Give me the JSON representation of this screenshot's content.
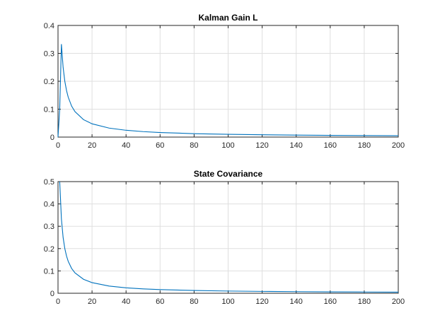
{
  "chart_data": [
    {
      "type": "line",
      "title": "Kalman Gain L",
      "xlabel": "",
      "ylabel": "",
      "xlim": [
        0,
        200
      ],
      "ylim": [
        0,
        0.4
      ],
      "xticks": [
        0,
        20,
        40,
        60,
        80,
        100,
        120,
        140,
        160,
        180,
        200
      ],
      "yticks": [
        0,
        0.1,
        0.2,
        0.3,
        0.4
      ],
      "xtick_labels": [
        "0",
        "20",
        "40",
        "60",
        "80",
        "100",
        "120",
        "140",
        "160",
        "180",
        "200"
      ],
      "ytick_labels": [
        "0",
        "0.1",
        "0.2",
        "0.3",
        "0.4"
      ],
      "grid": true,
      "legend": "none",
      "color": "#0072BD",
      "series": [
        {
          "x": [
            0,
            1,
            2,
            3,
            4,
            5,
            6,
            8,
            10,
            15,
            20,
            30,
            40,
            50,
            60,
            80,
            100,
            120,
            140,
            160,
            180,
            200
          ],
          "values": [
            0,
            0.1,
            0.333,
            0.25,
            0.2,
            0.167,
            0.143,
            0.111,
            0.091,
            0.0625,
            0.0476,
            0.0323,
            0.0244,
            0.0196,
            0.0164,
            0.0123,
            0.0099,
            0.0083,
            0.0071,
            0.0062,
            0.0055,
            0.005
          ]
        }
      ]
    },
    {
      "type": "line",
      "title": "State Covariance",
      "xlabel": "",
      "ylabel": "",
      "xlim": [
        0,
        200
      ],
      "ylim": [
        0,
        0.5
      ],
      "xticks": [
        0,
        20,
        40,
        60,
        80,
        100,
        120,
        140,
        160,
        180,
        200
      ],
      "yticks": [
        0,
        0.1,
        0.2,
        0.3,
        0.4,
        0.5
      ],
      "xtick_labels": [
        "0",
        "20",
        "40",
        "60",
        "80",
        "100",
        "120",
        "140",
        "160",
        "180",
        "200"
      ],
      "ytick_labels": [
        "0",
        "0.1",
        "0.2",
        "0.3",
        "0.4",
        "0.5"
      ],
      "grid": true,
      "legend": "none",
      "color": "#0072BD",
      "series": [
        {
          "x": [
            1,
            2,
            3,
            4,
            5,
            6,
            8,
            10,
            15,
            20,
            30,
            40,
            50,
            60,
            80,
            100,
            120,
            140,
            160,
            180,
            200
          ],
          "values": [
            0.5,
            0.333,
            0.25,
            0.2,
            0.167,
            0.143,
            0.111,
            0.091,
            0.0625,
            0.0476,
            0.0323,
            0.0244,
            0.0196,
            0.0164,
            0.0123,
            0.0099,
            0.0083,
            0.0071,
            0.0062,
            0.0055,
            0.005
          ]
        }
      ]
    }
  ]
}
